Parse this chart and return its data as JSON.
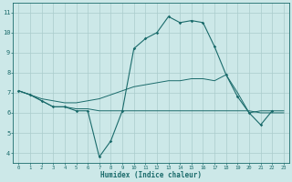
{
  "xlabel": "Humidex (Indice chaleur)",
  "ylabel": "",
  "xlim": [
    -0.5,
    23.5
  ],
  "ylim": [
    3.5,
    11.5
  ],
  "yticks": [
    4,
    5,
    6,
    7,
    8,
    9,
    10,
    11
  ],
  "xticks": [
    0,
    1,
    2,
    3,
    4,
    5,
    6,
    7,
    8,
    9,
    10,
    11,
    12,
    13,
    14,
    15,
    16,
    17,
    18,
    19,
    20,
    21,
    22,
    23
  ],
  "background_color": "#cce8e8",
  "line_color": "#1a6b6b",
  "grid_color": "#aacccc",
  "line1_x": [
    0,
    1,
    2,
    3,
    4,
    5,
    6,
    7,
    8,
    9,
    10,
    11,
    12,
    13,
    14,
    15,
    16,
    17,
    18,
    19,
    20,
    21,
    22
  ],
  "line1_y": [
    7.1,
    6.9,
    6.6,
    6.3,
    6.3,
    6.1,
    6.1,
    3.8,
    4.6,
    6.1,
    9.2,
    9.7,
    10.0,
    10.8,
    10.5,
    10.6,
    10.5,
    9.3,
    7.9,
    6.8,
    6.0,
    5.4,
    6.1
  ],
  "line2_x": [
    0,
    1,
    2,
    3,
    4,
    5,
    6,
    7,
    8,
    9,
    10,
    11,
    12,
    13,
    14,
    15,
    16,
    17,
    18,
    19,
    20,
    21,
    22,
    23
  ],
  "line2_y": [
    7.1,
    6.9,
    6.6,
    6.3,
    6.3,
    6.2,
    6.2,
    6.1,
    6.1,
    6.1,
    6.1,
    6.1,
    6.1,
    6.1,
    6.1,
    6.1,
    6.1,
    6.1,
    6.1,
    6.1,
    6.1,
    6.0,
    6.0,
    6.0
  ],
  "line3_x": [
    0,
    1,
    2,
    3,
    4,
    5,
    6,
    7,
    8,
    9,
    10,
    11,
    12,
    13,
    14,
    15,
    16,
    17,
    18,
    19,
    20,
    21,
    22,
    23
  ],
  "line3_y": [
    7.1,
    6.9,
    6.7,
    6.6,
    6.5,
    6.5,
    6.6,
    6.7,
    6.9,
    7.1,
    7.3,
    7.4,
    7.5,
    7.6,
    7.6,
    7.7,
    7.7,
    7.6,
    7.9,
    7.0,
    6.0,
    6.1,
    6.1,
    6.1
  ]
}
